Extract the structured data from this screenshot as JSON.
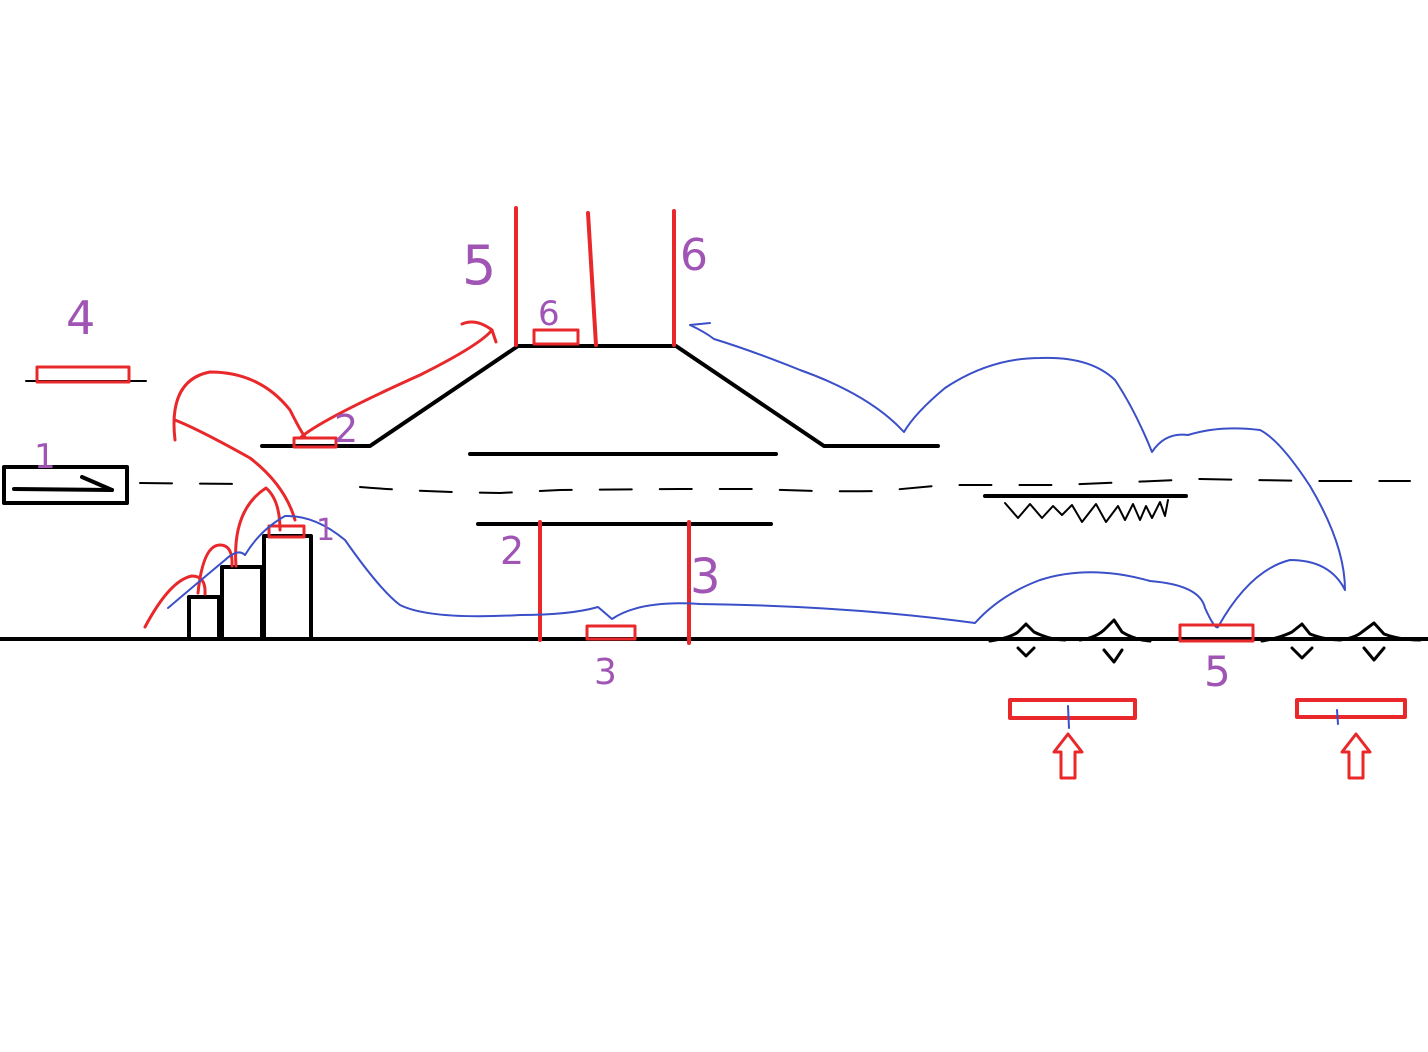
{
  "labels": {
    "platform_top_left": "4",
    "box_left": "1",
    "marker_ledge": "2",
    "pole_left": "5",
    "marker_top": "6",
    "pole_right": "6",
    "marker_building": "1",
    "support_left": "2",
    "support_right": "3",
    "marker_ground": "3",
    "marker_ground_right": "5"
  },
  "colors": {
    "structure": "#000000",
    "markers": "#e8282b",
    "paths": "#3a4fc8",
    "labels": "#a054b4",
    "background": "#ffffff"
  },
  "icons": {
    "arrow_in_box": "right-arrow-icon",
    "up_arrows": "up-arrow-icon",
    "barbs": "diamond-spike-icon"
  }
}
